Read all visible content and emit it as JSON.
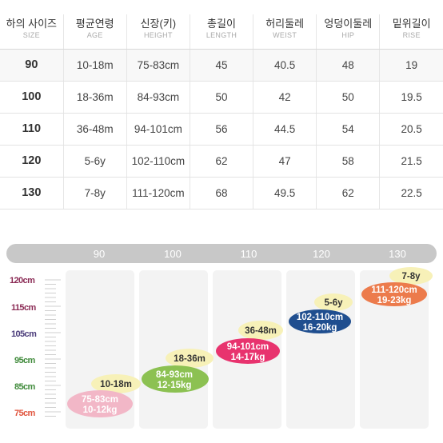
{
  "size_table": {
    "columns": [
      {
        "ko": "하의 사이즈",
        "en": "SIZE"
      },
      {
        "ko": "평균연령",
        "en": "AGE"
      },
      {
        "ko": "신장(키)",
        "en": "HEIGHT"
      },
      {
        "ko": "총길이",
        "en": "LENGTH"
      },
      {
        "ko": "허리둘레",
        "en": "WEIST"
      },
      {
        "ko": "엉덩이둘레",
        "en": "HIP"
      },
      {
        "ko": "밑위길이",
        "en": "RISE"
      }
    ],
    "rows": [
      [
        "90",
        "10-18m",
        "75-83cm",
        "45",
        "40.5",
        "48",
        "19"
      ],
      [
        "100",
        "18-36m",
        "84-93cm",
        "50",
        "42",
        "50",
        "19.5"
      ],
      [
        "110",
        "36-48m",
        "94-101cm",
        "56",
        "44.5",
        "54",
        "20.5"
      ],
      [
        "120",
        "5-6y",
        "102-110cm",
        "62",
        "47",
        "58",
        "21.5"
      ],
      [
        "130",
        "7-8y",
        "111-120cm",
        "68",
        "49.5",
        "62",
        "22.5"
      ]
    ]
  },
  "growth_chart": {
    "y_labels": [
      "120cm",
      "115cm",
      "105cm",
      "95cm",
      "85cm",
      "75cm"
    ],
    "y_label_colors": [
      "#8b2b55",
      "#8b2b55",
      "#4a3b7a",
      "#3f8a3a",
      "#3f8a3a",
      "#e0533c"
    ],
    "columns": [
      "90",
      "100",
      "110",
      "120",
      "130"
    ],
    "bubbles": [
      {
        "size": "90",
        "age": "10-18m",
        "height": "75-83cm",
        "weight": "10-12kg",
        "age_color": "#f7f1b8",
        "info_color": "#f2b7c7",
        "text_color": "#ffffff"
      },
      {
        "size": "100",
        "age": "18-36m",
        "height": "84-93cm",
        "weight": "12-15kg",
        "age_color": "#f7f1b8",
        "info_color": "#8cc152",
        "text_color": "#ffffff"
      },
      {
        "size": "110",
        "age": "36-48m",
        "height": "94-101cm",
        "weight": "14-17kg",
        "age_color": "#f7f1b8",
        "info_color": "#e8336e",
        "text_color": "#ffffff"
      },
      {
        "size": "120",
        "age": "5-6y",
        "height": "102-110cm",
        "weight": "16-20kg",
        "age_color": "#f7f1b8",
        "info_color": "#1f4e8f",
        "text_color": "#ffffff"
      },
      {
        "size": "130",
        "age": "7-8y",
        "height": "111-120cm",
        "weight": "19-23kg",
        "age_color": "#f7f1b8",
        "info_color": "#ec7b4c",
        "text_color": "#ffffff"
      }
    ]
  }
}
